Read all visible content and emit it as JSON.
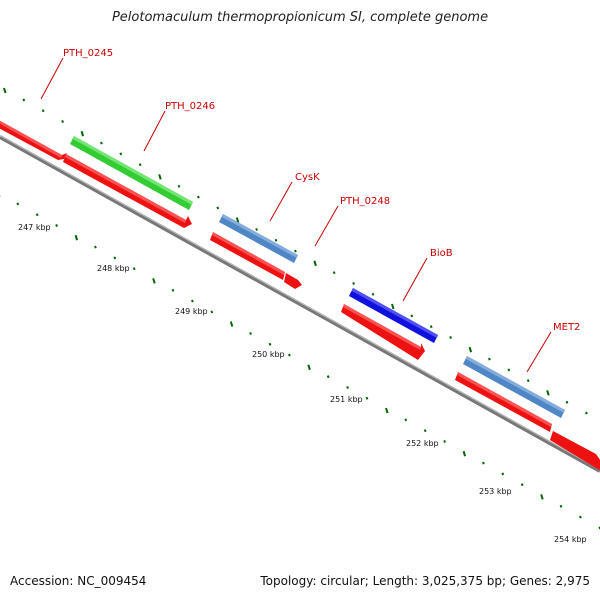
{
  "title": "Pelotomaculum thermopropionicum SI, complete genome",
  "footer": {
    "accession": "Accession: NC_009454",
    "stats": "Topology: circular; Length: 3,025,375 bp; Genes: 2,975"
  },
  "colors": {
    "cds": "#ee1111",
    "green": "#33cc33",
    "steelblue": "#4f86c6",
    "blue": "#1111dd",
    "backbone": "#777777",
    "tick": "#006600",
    "label": "#cc0000"
  },
  "kbp_labels": [
    "247 kbp",
    "248 kbp",
    "249 kbp",
    "250 kbp",
    "251 kbp",
    "252 kbp",
    "253 kbp",
    "254 kbp"
  ],
  "gene_labels": [
    {
      "name": "PTH_0245"
    },
    {
      "name": "PTH_0246"
    },
    {
      "name": "CysK"
    },
    {
      "name": "PTH_0248"
    },
    {
      "name": "BioB"
    },
    {
      "name": "MET2"
    }
  ]
}
